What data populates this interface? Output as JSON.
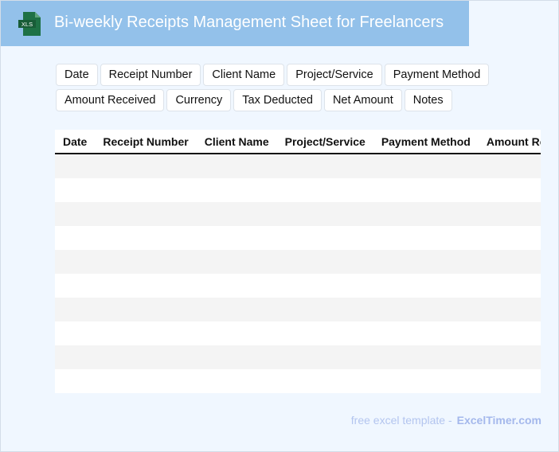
{
  "header": {
    "title": "Bi-weekly Receipts Management Sheet for Freelancers",
    "icon": "xls-file-icon",
    "icon_label": "XLS",
    "color": "#93c1ea"
  },
  "chips": [
    "Date",
    "Receipt Number",
    "Client Name",
    "Project/Service",
    "Payment Method",
    "Amount Received",
    "Currency",
    "Tax Deducted",
    "Net Amount",
    "Notes"
  ],
  "table": {
    "columns": [
      "Date",
      "Receipt Number",
      "Client Name",
      "Project/Service",
      "Payment Method",
      "Amount Received"
    ],
    "rows": 10
  },
  "footer": {
    "text": "free excel template -",
    "brand": "ExcelTimer.com"
  }
}
